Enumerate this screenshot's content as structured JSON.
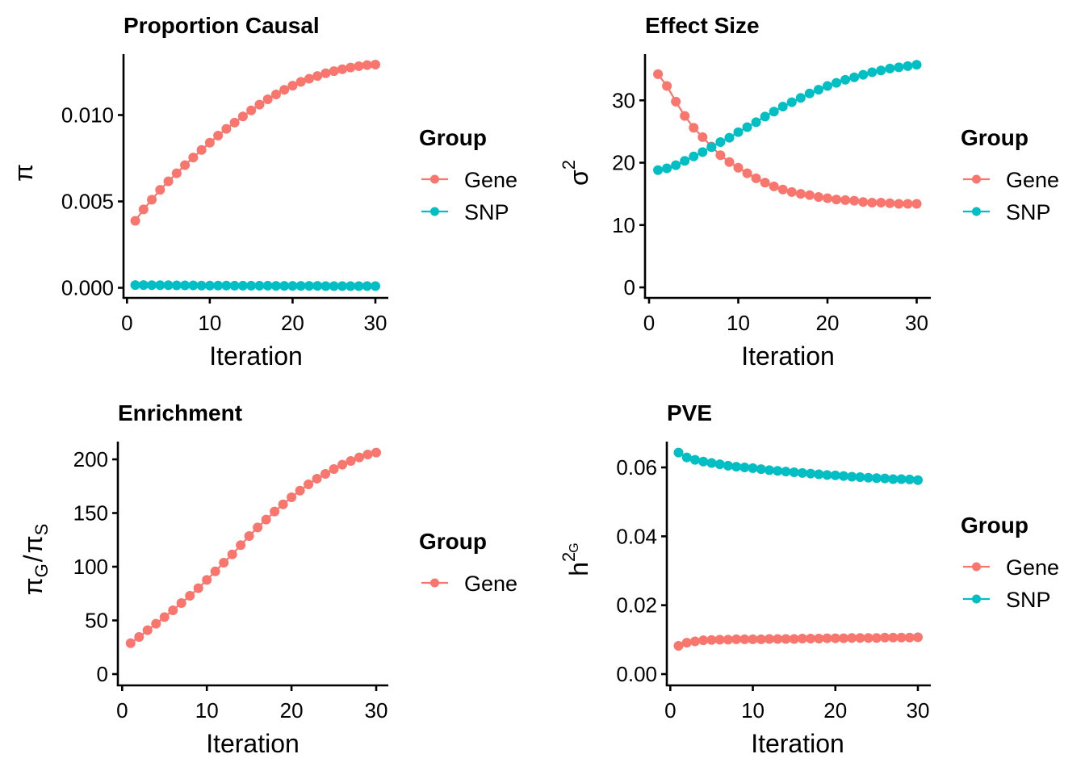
{
  "colors": {
    "Gene": "#F8766D",
    "SNP": "#00BFC4"
  },
  "chart_data": [
    {
      "type": "line",
      "title": "Proportion Causal",
      "xlabel": "Iteration",
      "ylabel": "π",
      "ylabel_parts": {
        "base": "π",
        "sup": "",
        "sub": ""
      },
      "xlim": [
        0,
        30
      ],
      "ylim": [
        0,
        0.013
      ],
      "xticks": [
        0,
        10,
        20,
        30
      ],
      "xtick_labels": [
        "0",
        "10",
        "20",
        "30"
      ],
      "yticks": [
        0,
        0.005,
        0.01
      ],
      "ytick_labels": [
        "0.000",
        "0.005",
        "0.010"
      ],
      "grid": false,
      "legend": {
        "title": "Group",
        "position": "right",
        "entries": [
          "Gene",
          "SNP"
        ]
      },
      "x": [
        1,
        2,
        3,
        4,
        5,
        6,
        7,
        8,
        9,
        10,
        11,
        12,
        13,
        14,
        15,
        16,
        17,
        18,
        19,
        20,
        21,
        22,
        23,
        24,
        25,
        26,
        27,
        28,
        29,
        30
      ],
      "series": [
        {
          "name": "Gene",
          "values": [
            0.00388,
            0.00454,
            0.0051,
            0.00567,
            0.00616,
            0.00663,
            0.0071,
            0.00754,
            0.00798,
            0.0084,
            0.00881,
            0.0092,
            0.00956,
            0.00992,
            0.01027,
            0.0106,
            0.01091,
            0.01119,
            0.01146,
            0.0117,
            0.01192,
            0.0121,
            0.01226,
            0.01242,
            0.01254,
            0.01265,
            0.01275,
            0.01283,
            0.01289,
            0.01292
          ]
        },
        {
          "name": "SNP",
          "values": [
            0.00016,
            0.00016,
            0.00015,
            0.00015,
            0.00015,
            0.00014,
            0.00014,
            0.00014,
            0.00013,
            0.00013,
            0.00013,
            0.00013,
            0.00012,
            0.00012,
            0.00012,
            0.00012,
            0.00012,
            0.00011,
            0.00011,
            0.00011,
            0.00011,
            0.00011,
            0.00011,
            0.0001,
            0.0001,
            0.0001,
            0.0001,
            0.0001,
            0.0001,
            0.0001
          ]
        }
      ]
    },
    {
      "type": "line",
      "title": "Effect Size",
      "xlabel": "Iteration",
      "ylabel": "σ²",
      "ylabel_parts": {
        "base": "σ",
        "sup": "2",
        "sub": ""
      },
      "xlim": [
        0,
        30
      ],
      "ylim": [
        0,
        36
      ],
      "xticks": [
        0,
        10,
        20,
        30
      ],
      "xtick_labels": [
        "0",
        "10",
        "20",
        "30"
      ],
      "yticks": [
        0,
        10,
        20,
        30
      ],
      "ytick_labels": [
        "0",
        "10",
        "20",
        "30"
      ],
      "grid": false,
      "legend": {
        "title": "Group",
        "position": "right",
        "entries": [
          "Gene",
          "SNP"
        ]
      },
      "x": [
        1,
        2,
        3,
        4,
        5,
        6,
        7,
        8,
        9,
        10,
        11,
        12,
        13,
        14,
        15,
        16,
        17,
        18,
        19,
        20,
        21,
        22,
        23,
        24,
        25,
        26,
        27,
        28,
        29,
        30
      ],
      "series": [
        {
          "name": "Gene",
          "values": [
            34.2,
            32.3,
            29.8,
            27.5,
            25.6,
            24.1,
            22.6,
            21.2,
            20.1,
            19.2,
            18.3,
            17.5,
            16.8,
            16.2,
            15.7,
            15.3,
            15.0,
            14.8,
            14.5,
            14.3,
            14.1,
            14.0,
            13.9,
            13.7,
            13.6,
            13.6,
            13.5,
            13.4,
            13.4,
            13.4
          ]
        },
        {
          "name": "SNP",
          "values": [
            18.8,
            19.1,
            19.6,
            20.3,
            21.0,
            21.7,
            22.5,
            23.3,
            24.0,
            24.9,
            25.7,
            26.5,
            27.4,
            28.2,
            29.0,
            29.7,
            30.4,
            31.1,
            31.7,
            32.3,
            32.8,
            33.3,
            33.7,
            34.1,
            34.5,
            34.8,
            35.1,
            35.3,
            35.5,
            35.7
          ]
        }
      ]
    },
    {
      "type": "line",
      "title": "Enrichment",
      "xlabel": "Iteration",
      "ylabel": "πG/πS",
      "ylabel_parts": {
        "num": "π",
        "num_sub": "G",
        "den": "π",
        "den_sub": "S"
      },
      "xlim": [
        0,
        30
      ],
      "ylim": [
        0,
        210
      ],
      "xticks": [
        0,
        10,
        20,
        30
      ],
      "xtick_labels": [
        "0",
        "10",
        "20",
        "30"
      ],
      "yticks": [
        0,
        50,
        100,
        150,
        200
      ],
      "ytick_labels": [
        "0",
        "50",
        "100",
        "150",
        "200"
      ],
      "grid": false,
      "legend": {
        "title": "Group",
        "position": "right",
        "entries": [
          "Gene"
        ]
      },
      "x": [
        1,
        2,
        3,
        4,
        5,
        6,
        7,
        8,
        9,
        10,
        11,
        12,
        13,
        14,
        15,
        16,
        17,
        18,
        19,
        20,
        21,
        22,
        23,
        24,
        25,
        26,
        27,
        28,
        29,
        30
      ],
      "series": [
        {
          "name": "Gene",
          "values": [
            28.8,
            34.6,
            40.9,
            46.9,
            53.1,
            59.4,
            66.2,
            72.9,
            80.0,
            87.7,
            95.7,
            103.8,
            111.5,
            120.1,
            128.6,
            136.6,
            143.9,
            151.4,
            158.1,
            164.7,
            170.9,
            176.7,
            182.0,
            186.5,
            191.0,
            195.0,
            198.5,
            201.8,
            204.5,
            206.3
          ]
        }
      ]
    },
    {
      "type": "line",
      "title": "PVE",
      "xlabel": "Iteration",
      "ylabel": "h²G",
      "ylabel_parts": {
        "base": "h",
        "sup": "2",
        "sub": "G"
      },
      "xlim": [
        0,
        30
      ],
      "ylim": [
        0,
        0.066
      ],
      "xticks": [
        0,
        10,
        20,
        30
      ],
      "xtick_labels": [
        "0",
        "10",
        "20",
        "30"
      ],
      "yticks": [
        0,
        0.02,
        0.04,
        0.06
      ],
      "ytick_labels": [
        "0.00",
        "0.02",
        "0.04",
        "0.06"
      ],
      "grid": false,
      "legend": {
        "title": "Group",
        "position": "right",
        "entries": [
          "Gene",
          "SNP"
        ]
      },
      "x": [
        1,
        2,
        3,
        4,
        5,
        6,
        7,
        8,
        9,
        10,
        11,
        12,
        13,
        14,
        15,
        16,
        17,
        18,
        19,
        20,
        21,
        22,
        23,
        24,
        25,
        26,
        27,
        28,
        29,
        30
      ],
      "series": [
        {
          "name": "Gene",
          "values": [
            0.0082,
            0.0091,
            0.0095,
            0.0098,
            0.0099,
            0.01,
            0.01,
            0.0101,
            0.0101,
            0.0101,
            0.0101,
            0.0102,
            0.0102,
            0.0102,
            0.0102,
            0.0103,
            0.0103,
            0.0103,
            0.0104,
            0.0104,
            0.0104,
            0.0105,
            0.0105,
            0.0105,
            0.0105,
            0.0106,
            0.0106,
            0.0106,
            0.0106,
            0.0107
          ]
        },
        {
          "name": "SNP",
          "values": [
            0.0643,
            0.0629,
            0.0622,
            0.0617,
            0.0613,
            0.0609,
            0.0605,
            0.0602,
            0.06,
            0.0598,
            0.0595,
            0.0592,
            0.059,
            0.0588,
            0.0586,
            0.0584,
            0.0582,
            0.058,
            0.0578,
            0.0577,
            0.0575,
            0.0573,
            0.0572,
            0.057,
            0.0569,
            0.0568,
            0.0566,
            0.0566,
            0.0565,
            0.0563
          ]
        }
      ]
    }
  ]
}
